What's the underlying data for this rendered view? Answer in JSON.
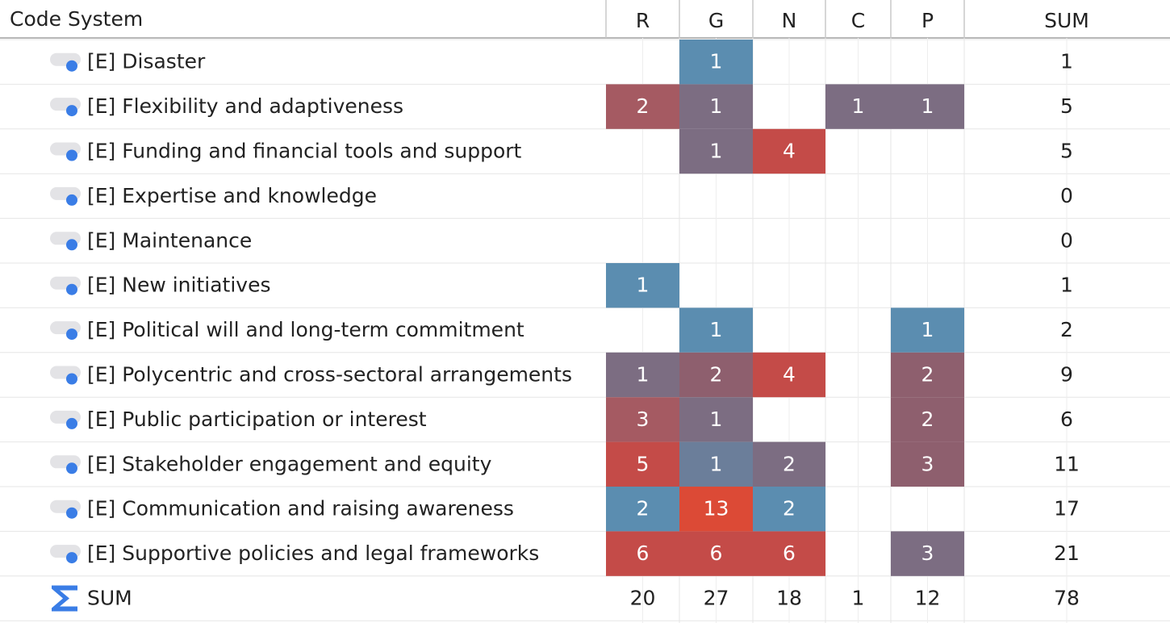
{
  "header": {
    "title": "Code System",
    "columns": [
      "R",
      "G",
      "N",
      "C",
      "P",
      "SUM"
    ]
  },
  "rows": [
    {
      "label": "[E] Disaster",
      "cells": [
        null,
        1,
        null,
        null,
        null
      ],
      "colors": [
        null,
        "#5b8db0",
        null,
        null,
        null
      ],
      "sum": 1
    },
    {
      "label": "[E] Flexibility and adaptiveness",
      "cells": [
        2,
        1,
        null,
        1,
        1
      ],
      "colors": [
        "#a55a62",
        "#7c6d82",
        null,
        "#7c6d82",
        "#7c6d82"
      ],
      "sum": 5
    },
    {
      "label": "[E] Funding and financial tools and support",
      "cells": [
        null,
        1,
        4,
        null,
        null
      ],
      "colors": [
        null,
        "#7c6d82",
        "#c44b48",
        null,
        null
      ],
      "sum": 5
    },
    {
      "label": "[E] Expertise and knowledge",
      "cells": [
        null,
        null,
        null,
        null,
        null
      ],
      "colors": [
        null,
        null,
        null,
        null,
        null
      ],
      "sum": 0
    },
    {
      "label": "[E] Maintenance",
      "cells": [
        null,
        null,
        null,
        null,
        null
      ],
      "colors": [
        null,
        null,
        null,
        null,
        null
      ],
      "sum": 0
    },
    {
      "label": "[E] New initiatives",
      "cells": [
        1,
        null,
        null,
        null,
        null
      ],
      "colors": [
        "#5b8db0",
        null,
        null,
        null,
        null
      ],
      "sum": 1
    },
    {
      "label": "[E] Political will and long-term commitment",
      "cells": [
        null,
        1,
        null,
        null,
        1
      ],
      "colors": [
        null,
        "#5b8db0",
        null,
        null,
        "#5b8db0"
      ],
      "sum": 2
    },
    {
      "label": "[E] Polycentric and cross-sectoral arrangements",
      "cells": [
        1,
        2,
        4,
        null,
        2
      ],
      "colors": [
        "#7c6d82",
        "#8e5f6e",
        "#c44b48",
        null,
        "#8e5f6e"
      ],
      "sum": 9
    },
    {
      "label": "[E] Public participation or interest",
      "cells": [
        3,
        1,
        null,
        null,
        2
      ],
      "colors": [
        "#a55a62",
        "#7c6d82",
        null,
        null,
        "#8e5f6e"
      ],
      "sum": 6
    },
    {
      "label": "[E] Stakeholder engagement and equity",
      "cells": [
        5,
        1,
        2,
        null,
        3
      ],
      "colors": [
        "#c44b48",
        "#6b7e9a",
        "#7c6d82",
        null,
        "#8e5f6e"
      ],
      "sum": 11
    },
    {
      "label": "[E] Communication and raising awareness",
      "cells": [
        2,
        13,
        2,
        null,
        null
      ],
      "colors": [
        "#5b8db0",
        "#dc4a36",
        "#5b8db0",
        null,
        null
      ],
      "sum": 17
    },
    {
      "label": "[E] Supportive policies and legal frameworks",
      "cells": [
        6,
        6,
        6,
        null,
        3
      ],
      "colors": [
        "#c44b48",
        "#c44b48",
        "#c44b48",
        null,
        "#7c6d82"
      ],
      "sum": 21
    }
  ],
  "total": {
    "label": "SUM",
    "cells": [
      20,
      27,
      18,
      1,
      12
    ],
    "sum": 78
  }
}
